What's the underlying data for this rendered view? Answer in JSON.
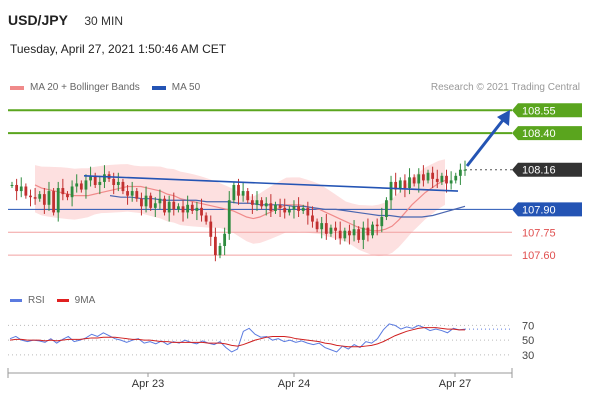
{
  "header": {
    "symbol": "USD/JPY",
    "interval": "30 MIN",
    "datetime": "Tuesday, April 27, 2021 1:50:46 AM CET"
  },
  "legend": {
    "ma20_label": "MA 20 + Bollinger Bands",
    "ma50_label": "MA 50",
    "credit": "Research © 2021 Trading Central"
  },
  "rsi_legend": {
    "rsi_label": "RSI",
    "ma9_label": "9MA"
  },
  "colors": {
    "green": "#5aa51e",
    "blue": "#2454b4",
    "red": "#e05050",
    "dark": "#333333",
    "bollinger_fill": "#fcd6d6",
    "ma20": "#f08a8a",
    "ma50": "#4a66b0",
    "candle_up": "#2e8b3e",
    "candle_down": "#c23030",
    "rsi": "#5b7be0",
    "rsi_ma": "#d02020"
  },
  "chart_data": {
    "type": "line",
    "title": "USD/JPY",
    "x_tick_labels": [
      "Apr 23",
      "Apr 24",
      "Apr 27"
    ],
    "levels": [
      {
        "value": 108.55,
        "label": "108.55",
        "kind": "resistance",
        "style": "green-tag"
      },
      {
        "value": 108.4,
        "label": "108.40",
        "kind": "resistance",
        "style": "green-tag"
      },
      {
        "value": 108.16,
        "label": "108.16",
        "kind": "last-price",
        "style": "dark-tag"
      },
      {
        "value": 107.9,
        "label": "107.90",
        "kind": "pivot",
        "style": "blue-tag"
      },
      {
        "value": 107.75,
        "label": "107.75",
        "kind": "support",
        "style": "red-text"
      },
      {
        "value": 107.6,
        "label": "107.60",
        "kind": "support",
        "style": "red-text"
      }
    ],
    "price_series": {
      "name": "USD/JPY",
      "values": [
        108.06,
        108.02,
        108.05,
        107.99,
        107.98,
        107.97,
        108.0,
        107.93,
        108.02,
        107.88,
        108.04,
        108.0,
        107.98,
        108.05,
        108.07,
        108.03,
        108.09,
        108.12,
        108.06,
        108.08,
        108.13,
        108.1,
        108.06,
        108.08,
        108.02,
        107.99,
        108.02,
        107.97,
        107.92,
        107.99,
        107.91,
        107.94,
        107.97,
        107.88,
        107.95,
        107.9,
        107.92,
        107.88,
        107.93,
        107.89,
        107.91,
        107.86,
        107.82,
        107.72,
        107.6,
        107.66,
        107.74,
        107.96,
        108.06,
        107.99,
        108.02,
        107.96,
        107.93,
        107.96,
        107.92,
        107.94,
        107.89,
        107.93,
        107.91,
        107.88,
        107.9,
        107.92,
        107.89,
        107.91,
        107.86,
        107.82,
        107.77,
        107.81,
        107.74,
        107.78,
        107.76,
        107.71,
        107.76,
        107.73,
        107.77,
        107.7,
        107.78,
        107.73,
        107.8,
        107.79,
        107.85,
        107.96,
        108.08,
        108.03,
        108.09,
        108.04,
        108.11,
        108.07,
        108.13,
        108.09,
        108.14,
        108.1,
        108.08,
        108.12,
        108.07,
        108.09,
        108.12,
        108.16,
        108.16
      ]
    },
    "ma20": [
      108.06,
      108.04,
      108.03,
      108.02,
      108.01,
      108.0,
      107.99,
      107.99,
      107.99,
      108.0,
      108.01,
      108.02,
      108.03,
      108.04,
      108.05,
      108.05,
      108.05,
      108.04,
      108.03,
      108.02,
      108.0,
      107.99,
      107.97,
      107.96,
      107.95,
      107.94,
      107.93,
      107.92,
      107.91,
      107.9,
      107.89,
      107.87,
      107.85,
      107.84,
      107.85,
      107.87,
      107.89,
      107.91,
      107.93,
      107.93,
      107.93,
      107.92,
      107.91,
      107.9,
      107.88,
      107.86,
      107.84,
      107.82,
      107.8,
      107.78,
      107.77,
      107.76,
      107.76,
      107.77,
      107.79,
      107.83,
      107.88,
      107.93,
      107.97,
      108.01,
      108.04,
      108.07,
      108.09
    ],
    "ma50": [
      107.99,
      107.98,
      107.98,
      107.97,
      107.97,
      107.96,
      107.96,
      107.96,
      107.96,
      107.95,
      107.95,
      107.95,
      107.94,
      107.94,
      107.93,
      107.93,
      107.93,
      107.92,
      107.92,
      107.91,
      107.9,
      107.9,
      107.89,
      107.88,
      107.87,
      107.86,
      107.86,
      107.85,
      107.85,
      107.85,
      107.86,
      107.88,
      107.9,
      107.92
    ],
    "trendlines": [
      {
        "from": [
          0,
          108.12
        ],
        "to": [
          94,
          108.02
        ],
        "label": ""
      }
    ],
    "rsi": {
      "levels": [
        70,
        50,
        30
      ],
      "rsi_values": [
        52,
        55,
        50,
        48,
        50,
        49,
        47,
        52,
        46,
        51,
        55,
        48,
        50,
        53,
        58,
        55,
        60,
        56,
        52,
        50,
        47,
        50,
        52,
        46,
        48,
        45,
        49,
        44,
        48,
        46,
        50,
        47,
        45,
        49,
        46,
        44,
        48,
        40,
        34,
        38,
        62,
        66,
        58,
        54,
        55,
        50,
        52,
        48,
        50,
        47,
        49,
        46,
        44,
        46,
        40,
        37,
        34,
        42,
        38,
        44,
        40,
        48,
        46,
        52,
        64,
        72,
        70,
        65,
        68,
        66,
        70,
        67,
        63,
        65,
        63,
        60,
        66,
        64,
        65
      ],
      "ma9_values": [
        50,
        51,
        51,
        50,
        50,
        50,
        49,
        50,
        49,
        50,
        51,
        51,
        51,
        52,
        53,
        53,
        54,
        54,
        54,
        53,
        52,
        51,
        51,
        50,
        50,
        49,
        48,
        48,
        47,
        47,
        47,
        47,
        47,
        47,
        46,
        46,
        46,
        45,
        43,
        42,
        44,
        47,
        50,
        52,
        54,
        55,
        55,
        55,
        54,
        52,
        51,
        50,
        49,
        48,
        46,
        45,
        43,
        42,
        41,
        41,
        41,
        42,
        43,
        45,
        48,
        52,
        56,
        59,
        62,
        64,
        66,
        67,
        67,
        67,
        66,
        65,
        65,
        64,
        64
      ]
    }
  }
}
